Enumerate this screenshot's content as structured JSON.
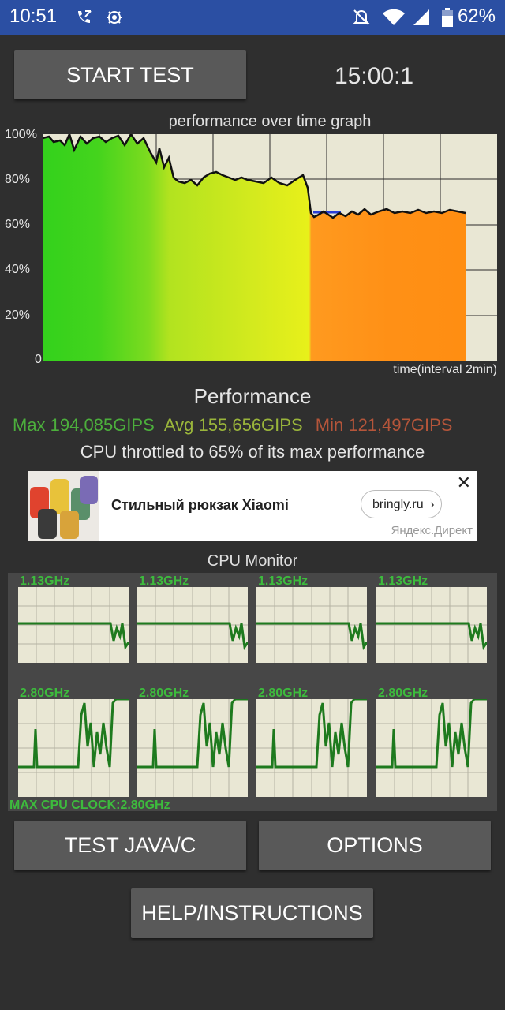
{
  "status_bar": {
    "time": "10:51",
    "battery": "62%"
  },
  "controls": {
    "start_test": "START TEST",
    "timer": "15:00:1"
  },
  "graph": {
    "title": "performance over time graph",
    "y_ticks": [
      "100%",
      "80%",
      "60%",
      "40%",
      "20%",
      "0"
    ],
    "x_label": "time(interval 2min)"
  },
  "performance": {
    "heading": "Performance",
    "max": "Max 194,085GIPS",
    "avg": "Avg 155,656GIPS",
    "min": "Min 121,497GIPS",
    "throttle": "CPU throttled to 65% of its max performance",
    "colors": {
      "max": "#4caf3c",
      "avg": "#9ab53b",
      "min": "#b5553a"
    }
  },
  "ad": {
    "title": "Стильный рюкзак Xiaomi",
    "link": "bringly.ru",
    "source": "Яндекс.Директ"
  },
  "cpu_monitor": {
    "title": "CPU Monitor",
    "top_row": [
      "1.13GHz",
      "1.13GHz",
      "1.13GHz",
      "1.13GHz"
    ],
    "bottom_row": [
      "2.80GHz",
      "2.80GHz",
      "2.80GHz",
      "2.80GHz"
    ],
    "max_clock": "MAX CPU CLOCK:2.80GHz"
  },
  "buttons": {
    "test_java_c": "TEST JAVA/C",
    "options": "OPTIONS",
    "help": "HELP/INSTRUCTIONS"
  }
}
